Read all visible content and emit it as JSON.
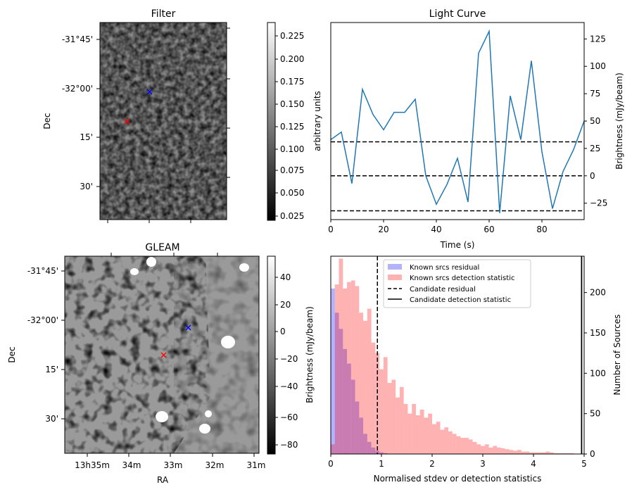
{
  "panels": {
    "filter": {
      "title": "Filter",
      "ylabel": "Dec",
      "yticks": [
        "-31°45'",
        "-32°00'",
        "15'",
        "30'"
      ],
      "colorbar": {
        "label": "arbitrary units",
        "ticks": [
          "0.025",
          "0.050",
          "0.075",
          "0.100",
          "0.125",
          "0.150",
          "0.175",
          "0.200",
          "0.225"
        ]
      }
    },
    "gleam": {
      "title": "GLEAM",
      "ylabel": "Dec",
      "xlabel": "RA",
      "yticks": [
        "-31°45'",
        "-32°00'",
        "15'",
        "30'"
      ],
      "xticks": [
        "13h35m",
        "34m",
        "33m",
        "32m",
        "31m"
      ],
      "colorbar": {
        "label": "Brightness (mJy/beam)",
        "ticks": [
          "40",
          "20",
          "0",
          "−20",
          "−40",
          "−60",
          "−80"
        ]
      }
    }
  },
  "markers": {
    "known_color": "#0000ff",
    "candidate_color": "#ff0000"
  },
  "chart_data": [
    {
      "type": "line",
      "title": "Light Curve",
      "xlabel": "Time (s)",
      "ylabel": "Brightness (mJy/beam)",
      "xlim": [
        0,
        96
      ],
      "ylim": [
        -40,
        140
      ],
      "xticks": [
        0,
        20,
        40,
        60,
        80
      ],
      "yticks": [
        -25,
        0,
        25,
        50,
        75,
        100,
        125
      ],
      "x": [
        0,
        4,
        8,
        12,
        16,
        20,
        24,
        28,
        32,
        36,
        40,
        44,
        48,
        52,
        56,
        60,
        64,
        68,
        72,
        76,
        80,
        84,
        88,
        92,
        96
      ],
      "y": [
        33,
        40,
        -7,
        79,
        56,
        42,
        58,
        58,
        70,
        0,
        -26,
        -8,
        16,
        -24,
        112,
        132,
        -34,
        73,
        33,
        105,
        22,
        -30,
        4,
        24,
        50
      ],
      "hlines": [
        31,
        0,
        -32
      ],
      "color": "#1f77b4"
    },
    {
      "type": "histogram",
      "xlabel": "Normalised stdev or detection statistics",
      "ylabel": "Number of Sources",
      "xlim": [
        0,
        5
      ],
      "ylim": [
        0,
        245
      ],
      "xticks": [
        0,
        1,
        2,
        3,
        4,
        5
      ],
      "yticks": [
        0,
        50,
        100,
        150,
        200
      ],
      "bin_width": 0.08,
      "series": [
        {
          "name": "Known srcs residual",
          "color": "#0000ff",
          "counts": [
            205,
            175,
            155,
            130,
            112,
            92,
            65,
            45,
            25,
            15,
            8,
            4,
            2,
            1,
            0
          ]
        },
        {
          "name": "Known srcs detection statistic",
          "color": "#ff0000",
          "counts": [
            12,
            210,
            242,
            205,
            213,
            215,
            208,
            175,
            165,
            180,
            138,
            125,
            105,
            120,
            88,
            92,
            70,
            83,
            62,
            50,
            62,
            48,
            55,
            45,
            50,
            37,
            40,
            30,
            33,
            28,
            25,
            22,
            20,
            20,
            18,
            15,
            12,
            10,
            12,
            8,
            10,
            8,
            7,
            6,
            5,
            4,
            5,
            3,
            3,
            2,
            2,
            2,
            2,
            3,
            2,
            1,
            1,
            1,
            1,
            1,
            0,
            0
          ]
        }
      ],
      "candidate_residual": 0.92,
      "candidate_detection_statistic": 4.95,
      "legend": [
        "Known srcs residual",
        "Known srcs detection statistic",
        "Candidate residual",
        "Candidate detection statistic"
      ],
      "legend_position": "top-center"
    }
  ]
}
